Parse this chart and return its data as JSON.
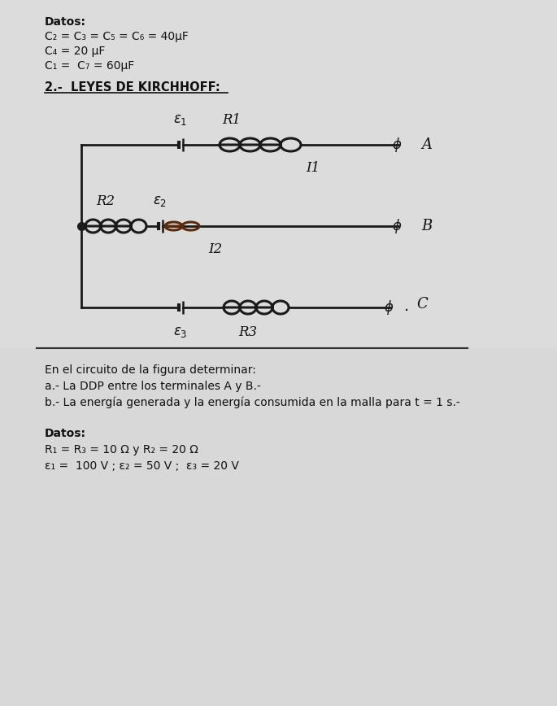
{
  "bg_top": "#c8c8c8",
  "bg_bottom": "#e0e0e0",
  "page_color": "#dcdcdc",
  "text_color": "#111111",
  "circuit_color": "#1a1a1a",
  "divider_color": "#333333",
  "title_text": "Datos:",
  "line1": "C₂ = C₃ = C₅ = C₆ = 40μF",
  "line2": "C₄ = 20 μF",
  "line3": "C₁ =  C₇ = 60μF",
  "section_title": "2.-  LEYES DE KIRCHHOFF:",
  "circuit_labels": {
    "eps1": "ε1",
    "R1": "R1",
    "I1": "I1",
    "eps2": "ε2",
    "R2": "R2",
    "I2": "I2",
    "eps3": "ε3",
    "R3": "R3",
    "A": "A",
    "B": "B",
    "C": "C"
  },
  "bottom_line0": "En el circuito de la figura determinar:",
  "bottom_line1": "a.- La DDP entre los terminales A y B.-",
  "bottom_line2": "b.- La energía generada y la energía consumida en la malla para t = 1 s.-",
  "datos2_title": "Datos:",
  "datos2_line1": "R₁ = R₃ = 10 Ω y R₂ = 20 Ω",
  "datos2_line2": "ε₁ =  100 V ; ε₂ = 50 V ;  ε₃ = 20 V"
}
